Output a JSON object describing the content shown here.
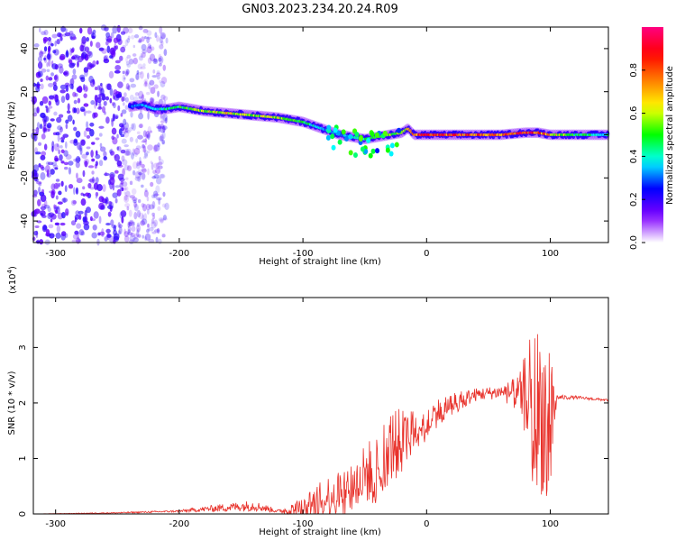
{
  "figure_title": "GN03.2023.234.20.24.R09",
  "colors": {
    "snr_line": "#e8312a",
    "spectrogram_low": "#8a00ff",
    "frame": "#000000"
  },
  "colorbar": {
    "label": "Normalized spectral amplitude",
    "ticks": [
      "0.0",
      "0.2",
      "0.4",
      "0.6",
      "0.8"
    ],
    "tick_values": [
      0.0,
      0.2,
      0.4,
      0.6,
      0.8
    ],
    "range": [
      0,
      1
    ],
    "colormap": [
      "#ffffff",
      "#8000ff",
      "#0000ff",
      "#00ffff",
      "#00ff00",
      "#ffff00",
      "#ff8000",
      "#ff0000",
      "#ff0080"
    ]
  },
  "chart_data": [
    {
      "type": "heatmap",
      "title": "",
      "xlabel": "Height of straight line (km)",
      "ylabel": "Frequency (Hz)",
      "xlim": [
        -318,
        147
      ],
      "ylim": [
        -50,
        50
      ],
      "x_ticks": [
        -300,
        -200,
        -100,
        0,
        100
      ],
      "x_tick_labels": [
        "-300",
        "-200",
        "-100",
        "0",
        "100"
      ],
      "y_ticks": [
        -40,
        -20,
        0,
        20,
        40
      ],
      "y_tick_labels": [
        "-40",
        "-20",
        "0",
        "20",
        "40"
      ],
      "ridge": {
        "x": [
          -240,
          -230,
          -220,
          -210,
          -200,
          -190,
          -180,
          -160,
          -140,
          -120,
          -100,
          -90,
          -80,
          -70,
          -60,
          -50,
          -40,
          -30,
          -20,
          -15,
          -10,
          0,
          20,
          40,
          60,
          80,
          90,
          100,
          120,
          147
        ],
        "freq": [
          13,
          14,
          12,
          12,
          13,
          12,
          11,
          10,
          9,
          8,
          6,
          4,
          2,
          0,
          -1,
          -2,
          -1,
          0,
          1,
          3,
          0,
          0,
          0,
          0,
          0,
          1,
          1,
          0,
          0,
          0
        ],
        "amplitude": [
          0.3,
          0.35,
          0.4,
          0.45,
          0.5,
          0.55,
          0.6,
          0.65,
          0.6,
          0.6,
          0.5,
          0.4,
          0.35,
          0.35,
          0.4,
          0.45,
          0.5,
          0.55,
          0.6,
          0.7,
          0.8,
          0.9,
          0.85,
          0.8,
          0.8,
          0.9,
          0.85,
          0.7,
          0.5,
          0.4
        ]
      },
      "noise_region_x": [
        -318,
        -210
      ],
      "noise_amplitude": 0.08
    },
    {
      "type": "line",
      "title": "",
      "xlabel": "Height of straight line (km)",
      "ylabel": "SNR (10 * v/v)",
      "y_multiplier_label": "(x10",
      "y_multiplier_exp": "4",
      "y_multiplier_close": ")",
      "xlim": [
        -318,
        147
      ],
      "ylim": [
        0,
        3.9
      ],
      "x_ticks": [
        -300,
        -200,
        -100,
        0,
        100
      ],
      "x_tick_labels": [
        "-300",
        "-200",
        "-100",
        "0",
        "100"
      ],
      "y_ticks": [
        0,
        1,
        2,
        3
      ],
      "y_tick_labels": [
        "0",
        "1",
        "2",
        "3"
      ],
      "envelope": {
        "x": [
          -318,
          -250,
          -200,
          -160,
          -140,
          -120,
          -100,
          -90,
          -80,
          -70,
          -60,
          -50,
          -40,
          -30,
          -20,
          -10,
          0,
          10,
          20,
          40,
          60,
          75,
          85,
          90,
          95,
          100,
          105,
          120,
          147
        ],
        "base": [
          0.0,
          0.02,
          0.05,
          0.12,
          0.15,
          0.05,
          0.1,
          0.2,
          0.3,
          0.4,
          0.5,
          0.7,
          0.9,
          1.2,
          1.3,
          1.5,
          1.7,
          1.85,
          2.0,
          2.15,
          2.2,
          2.2,
          2.1,
          1.9,
          1.8,
          1.7,
          2.1,
          2.1,
          2.05
        ],
        "noise": [
          0.0,
          0.01,
          0.02,
          0.08,
          0.1,
          0.03,
          0.2,
          0.3,
          0.4,
          0.45,
          0.5,
          0.55,
          0.6,
          0.7,
          0.6,
          0.4,
          0.3,
          0.25,
          0.2,
          0.12,
          0.12,
          0.3,
          1.3,
          1.5,
          1.5,
          1.8,
          0.05,
          0.03,
          0.02
        ]
      }
    }
  ]
}
